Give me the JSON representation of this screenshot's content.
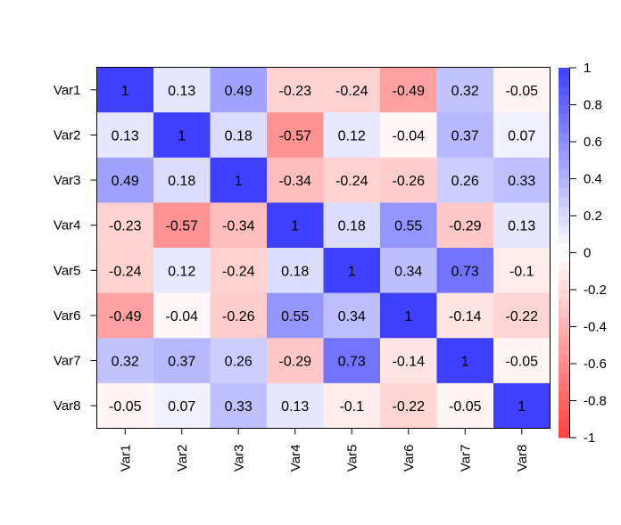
{
  "chart_data": {
    "type": "heatmap",
    "title": "",
    "row_labels": [
      "Var1",
      "Var2",
      "Var3",
      "Var4",
      "Var5",
      "Var6",
      "Var7",
      "Var8"
    ],
    "col_labels": [
      "Var1",
      "Var2",
      "Var3",
      "Var4",
      "Var5",
      "Var6",
      "Var7",
      "Var8"
    ],
    "values": [
      [
        1,
        0.13,
        0.49,
        -0.23,
        -0.24,
        -0.49,
        0.32,
        -0.05
      ],
      [
        0.13,
        1,
        0.18,
        -0.57,
        0.12,
        -0.04,
        0.37,
        0.07
      ],
      [
        0.49,
        0.18,
        1,
        -0.34,
        -0.24,
        -0.26,
        0.26,
        0.33
      ],
      [
        -0.23,
        -0.57,
        -0.34,
        1,
        0.18,
        0.55,
        -0.29,
        0.13
      ],
      [
        -0.24,
        0.12,
        -0.24,
        0.18,
        1,
        0.34,
        0.73,
        -0.1
      ],
      [
        -0.49,
        -0.04,
        -0.26,
        0.55,
        0.34,
        1,
        -0.14,
        -0.22
      ],
      [
        0.32,
        0.37,
        0.26,
        -0.29,
        0.73,
        -0.14,
        1,
        -0.05
      ],
      [
        -0.05,
        0.07,
        0.33,
        0.13,
        -0.1,
        -0.22,
        -0.05,
        1
      ]
    ],
    "cell_text": [
      [
        "1",
        "0.13",
        "0.49",
        "-0.23",
        "-0.24",
        "-0.49",
        "0.32",
        "-0.05"
      ],
      [
        "0.13",
        "1",
        "0.18",
        "-0.57",
        "0.12",
        "-0.04",
        "0.37",
        "0.07"
      ],
      [
        "0.49",
        "0.18",
        "1",
        "-0.34",
        "-0.24",
        "-0.26",
        "0.26",
        "0.33"
      ],
      [
        "-0.23",
        "-0.57",
        "-0.34",
        "1",
        "0.18",
        "0.55",
        "-0.29",
        "0.13"
      ],
      [
        "-0.24",
        "0.12",
        "-0.24",
        "0.18",
        "1",
        "0.34",
        "0.73",
        "-0.1"
      ],
      [
        "-0.49",
        "-0.04",
        "-0.26",
        "0.55",
        "0.34",
        "1",
        "-0.14",
        "-0.22"
      ],
      [
        "0.32",
        "0.37",
        "0.26",
        "-0.29",
        "0.73",
        "-0.14",
        "1",
        "-0.05"
      ],
      [
        "-0.05",
        "0.07",
        "0.33",
        "0.13",
        "-0.1",
        "-0.22",
        "-0.05",
        "1"
      ]
    ],
    "color_scale": {
      "range": [
        -1,
        1
      ],
      "low_color": "#FF3F3F",
      "mid_color": "#FFFFFF",
      "high_color": "#3F3FFF",
      "ticks": [
        1,
        0.8,
        0.6,
        0.4,
        0.2,
        0,
        -0.2,
        -0.4,
        -0.6,
        -0.8,
        -1
      ],
      "tick_labels": [
        "1",
        "0.8",
        "0.6",
        "0.4",
        "0.2",
        "0",
        "-0.2",
        "-0.4",
        "-0.6",
        "-0.8",
        "-1"
      ],
      "legend_position": "right"
    },
    "xlabel": "",
    "ylabel": ""
  }
}
